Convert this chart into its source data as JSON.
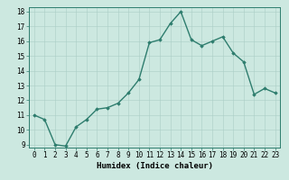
{
  "x": [
    0,
    1,
    2,
    3,
    4,
    5,
    6,
    7,
    8,
    9,
    10,
    11,
    12,
    13,
    14,
    15,
    16,
    17,
    18,
    19,
    20,
    21,
    22,
    23
  ],
  "y": [
    11.0,
    10.7,
    9.0,
    8.9,
    10.2,
    10.7,
    11.4,
    11.5,
    11.8,
    12.5,
    13.4,
    15.9,
    16.1,
    17.2,
    18.0,
    16.1,
    15.7,
    16.0,
    16.3,
    15.2,
    14.6,
    12.4,
    12.8,
    12.5
  ],
  "line_color": "#2e7d6e",
  "marker": "D",
  "marker_size": 1.8,
  "bg_color": "#cce8e0",
  "grid_color": "#aacec6",
  "xlabel": "Humidex (Indice chaleur)",
  "xlim": [
    -0.5,
    23.5
  ],
  "ylim": [
    8.8,
    18.3
  ],
  "yticks": [
    9,
    10,
    11,
    12,
    13,
    14,
    15,
    16,
    17,
    18
  ],
  "xticks": [
    0,
    1,
    2,
    3,
    4,
    5,
    6,
    7,
    8,
    9,
    10,
    11,
    12,
    13,
    14,
    15,
    16,
    17,
    18,
    19,
    20,
    21,
    22,
    23
  ],
  "tick_fontsize": 5.5,
  "xlabel_fontsize": 6.5,
  "linewidth": 1.0
}
